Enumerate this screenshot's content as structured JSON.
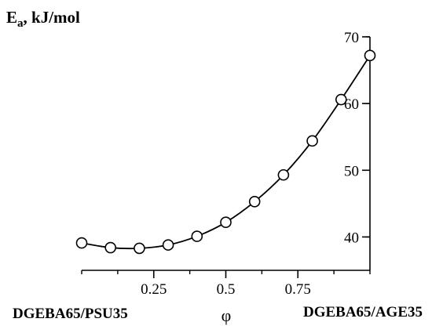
{
  "chart_data": {
    "type": "line",
    "ylabel_main": "E",
    "ylabel_sub": "a",
    "ylabel_rest": ", kJ/mol",
    "xlabel": "φ",
    "left_label": "DGEBA65/PSU35",
    "right_label": "DGEBA65/AGE35",
    "xlim": [
      0,
      1
    ],
    "ylim": [
      35,
      70
    ],
    "xticks": [
      0.25,
      0.5,
      0.75
    ],
    "xtick_labels": [
      "0.25",
      "0.5",
      "0.75"
    ],
    "yticks": [
      40,
      50,
      60,
      70
    ],
    "ytick_labels": [
      "40",
      "50",
      "60",
      "70"
    ],
    "grid": false,
    "marker": "open-circle",
    "x": [
      0.0,
      0.1,
      0.2,
      0.3,
      0.4,
      0.5,
      0.6,
      0.7,
      0.8,
      0.9,
      1.0
    ],
    "y": [
      39.1,
      38.4,
      38.3,
      38.8,
      40.1,
      42.2,
      45.3,
      49.3,
      54.4,
      60.6,
      67.2
    ]
  }
}
